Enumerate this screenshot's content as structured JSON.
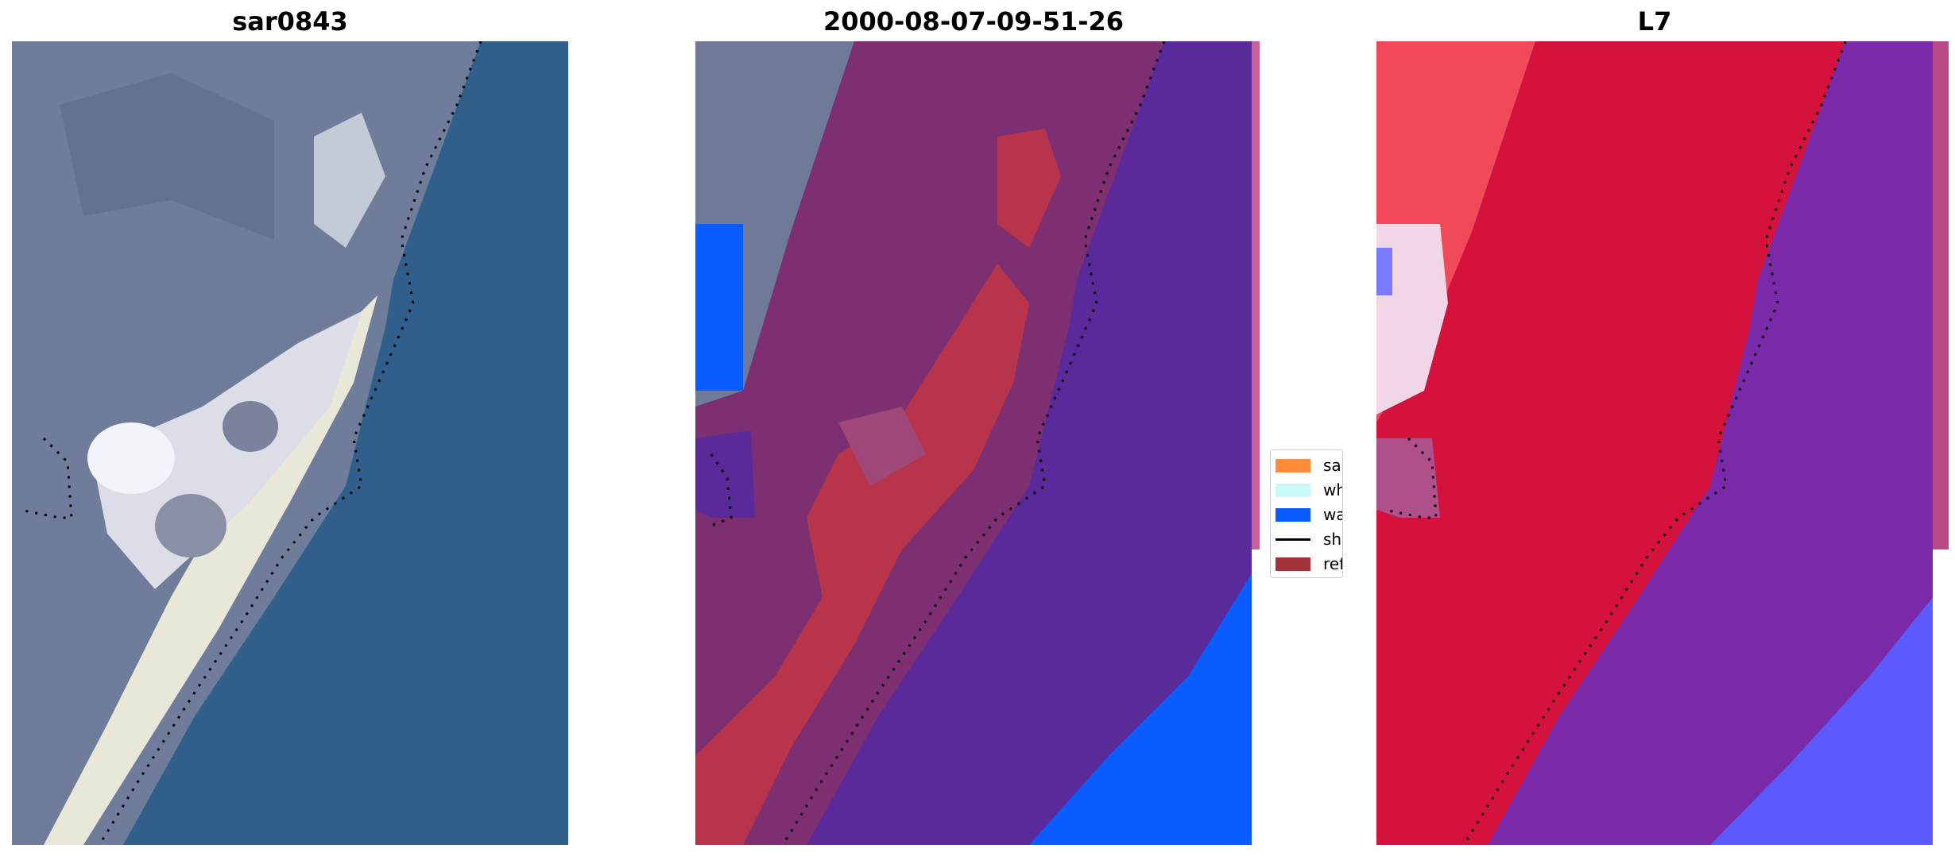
{
  "panels": [
    {
      "title": "sar0843"
    },
    {
      "title": "2000-08-07-09-51-26"
    },
    {
      "title": "L7"
    }
  ],
  "legend": {
    "items": [
      {
        "label": "sand",
        "color": "#ff8c3c",
        "kind": "patch"
      },
      {
        "label": "whitewater",
        "color": "#c8fafa",
        "kind": "patch"
      },
      {
        "label": "water",
        "color": "#0a5cff",
        "kind": "patch"
      },
      {
        "label": "shoreline",
        "color": "#000000",
        "kind": "line"
      },
      {
        "label": "reference shoreline",
        "color": "#a0343a",
        "kind": "patch"
      }
    ]
  },
  "colors": {
    "sea_rgb": "#2f5f8a",
    "land_rgb": "#7f8aa6",
    "sand_rgb": "#e6e6dc",
    "class_purple": "#5a2a9a",
    "class_red": "#b8344a",
    "class_blue": "#0a5cff",
    "index_red": "#d4123c",
    "index_purple": "#7a2aa8"
  }
}
